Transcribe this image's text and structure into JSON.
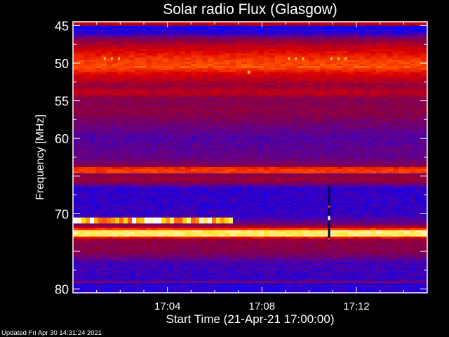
{
  "chart_data": {
    "type": "heatmap",
    "title": "Solar radio Flux (Glasgow)",
    "xlabel": "Start Time (21-Apr-21 17:00:00)",
    "ylabel": "Frequency [MHz]",
    "x_range_minutes_after_17_00": [
      0,
      15
    ],
    "x_ticks": [
      {
        "label": "17:04",
        "minute": 4
      },
      {
        "label": "17:08",
        "minute": 8
      },
      {
        "label": "17:12",
        "minute": 12
      }
    ],
    "ylim": [
      44.5,
      80.5
    ],
    "y_ticks": [
      45,
      50,
      55,
      60,
      70,
      80
    ],
    "y_axis_inverted": true,
    "colormap": [
      "#0000ff",
      "#5a0096",
      "#8c0040",
      "#dc0000",
      "#ff5000",
      "#ffdc00",
      "#ffffff"
    ],
    "intensity_profile": [
      {
        "mhz": 44.5,
        "level": 0.45
      },
      {
        "mhz": 44.9,
        "level": 0.45
      },
      {
        "mhz": 45.0,
        "level": 0.04
      },
      {
        "mhz": 46.0,
        "level": 0.06
      },
      {
        "mhz": 46.6,
        "level": 0.25
      },
      {
        "mhz": 47.3,
        "level": 0.38
      },
      {
        "mhz": 48.6,
        "level": 0.52
      },
      {
        "mhz": 49.6,
        "level": 0.62
      },
      {
        "mhz": 50.6,
        "level": 0.66
      },
      {
        "mhz": 51.4,
        "level": 0.5
      },
      {
        "mhz": 53.0,
        "level": 0.35
      },
      {
        "mhz": 54.0,
        "level": 0.45
      },
      {
        "mhz": 54.7,
        "level": 0.3
      },
      {
        "mhz": 56.5,
        "level": 0.33
      },
      {
        "mhz": 58.0,
        "level": 0.25
      },
      {
        "mhz": 59.8,
        "level": 0.15
      },
      {
        "mhz": 62.5,
        "level": 0.2
      },
      {
        "mhz": 63.6,
        "level": 0.28
      },
      {
        "mhz": 64.0,
        "level": 0.62
      },
      {
        "mhz": 64.6,
        "level": 0.62
      },
      {
        "mhz": 64.8,
        "level": 0.28
      },
      {
        "mhz": 65.4,
        "level": 0.38
      },
      {
        "mhz": 65.9,
        "level": 0.28
      },
      {
        "mhz": 66.6,
        "level": 0.08
      },
      {
        "mhz": 70.3,
        "level": 0.1
      },
      {
        "mhz": 71.3,
        "level": 0.22
      },
      {
        "mhz": 72.0,
        "level": 0.5
      },
      {
        "mhz": 72.2,
        "level": 0.9
      },
      {
        "mhz": 72.9,
        "level": 0.9
      },
      {
        "mhz": 73.2,
        "level": 0.5
      },
      {
        "mhz": 73.4,
        "level": 0.35
      },
      {
        "mhz": 75.2,
        "level": 0.3
      },
      {
        "mhz": 76.5,
        "level": 0.12
      },
      {
        "mhz": 78.8,
        "level": 0.1
      },
      {
        "mhz": 79.0,
        "level": 0.3
      },
      {
        "mhz": 79.3,
        "level": 0.08
      },
      {
        "mhz": 80.5,
        "level": 0.08
      }
    ],
    "events": [
      {
        "kind": "band-burst",
        "mhz": [
          70.5,
          71.3
        ],
        "minutes": [
          0,
          6.7
        ],
        "level": 0.85
      },
      {
        "kind": "spike",
        "mhz": [
          66.3,
          73.6
        ],
        "minutes": [
          10.8,
          10.9
        ],
        "level": 0.0
      },
      {
        "kind": "spots",
        "mhz": [
          49.2,
          49.6
        ],
        "minutes": [
          1.3,
          1.6,
          1.9,
          9.1,
          9.4,
          9.7,
          10.9,
          11.2,
          11.5
        ],
        "level": 0.8
      },
      {
        "kind": "spot",
        "mhz": [
          51.0,
          51.4
        ],
        "minutes": [
          7.4
        ],
        "level": 0.85
      }
    ]
  },
  "footer": {
    "updated": "Updated Fri Apr 30 14:31:24 2021"
  }
}
